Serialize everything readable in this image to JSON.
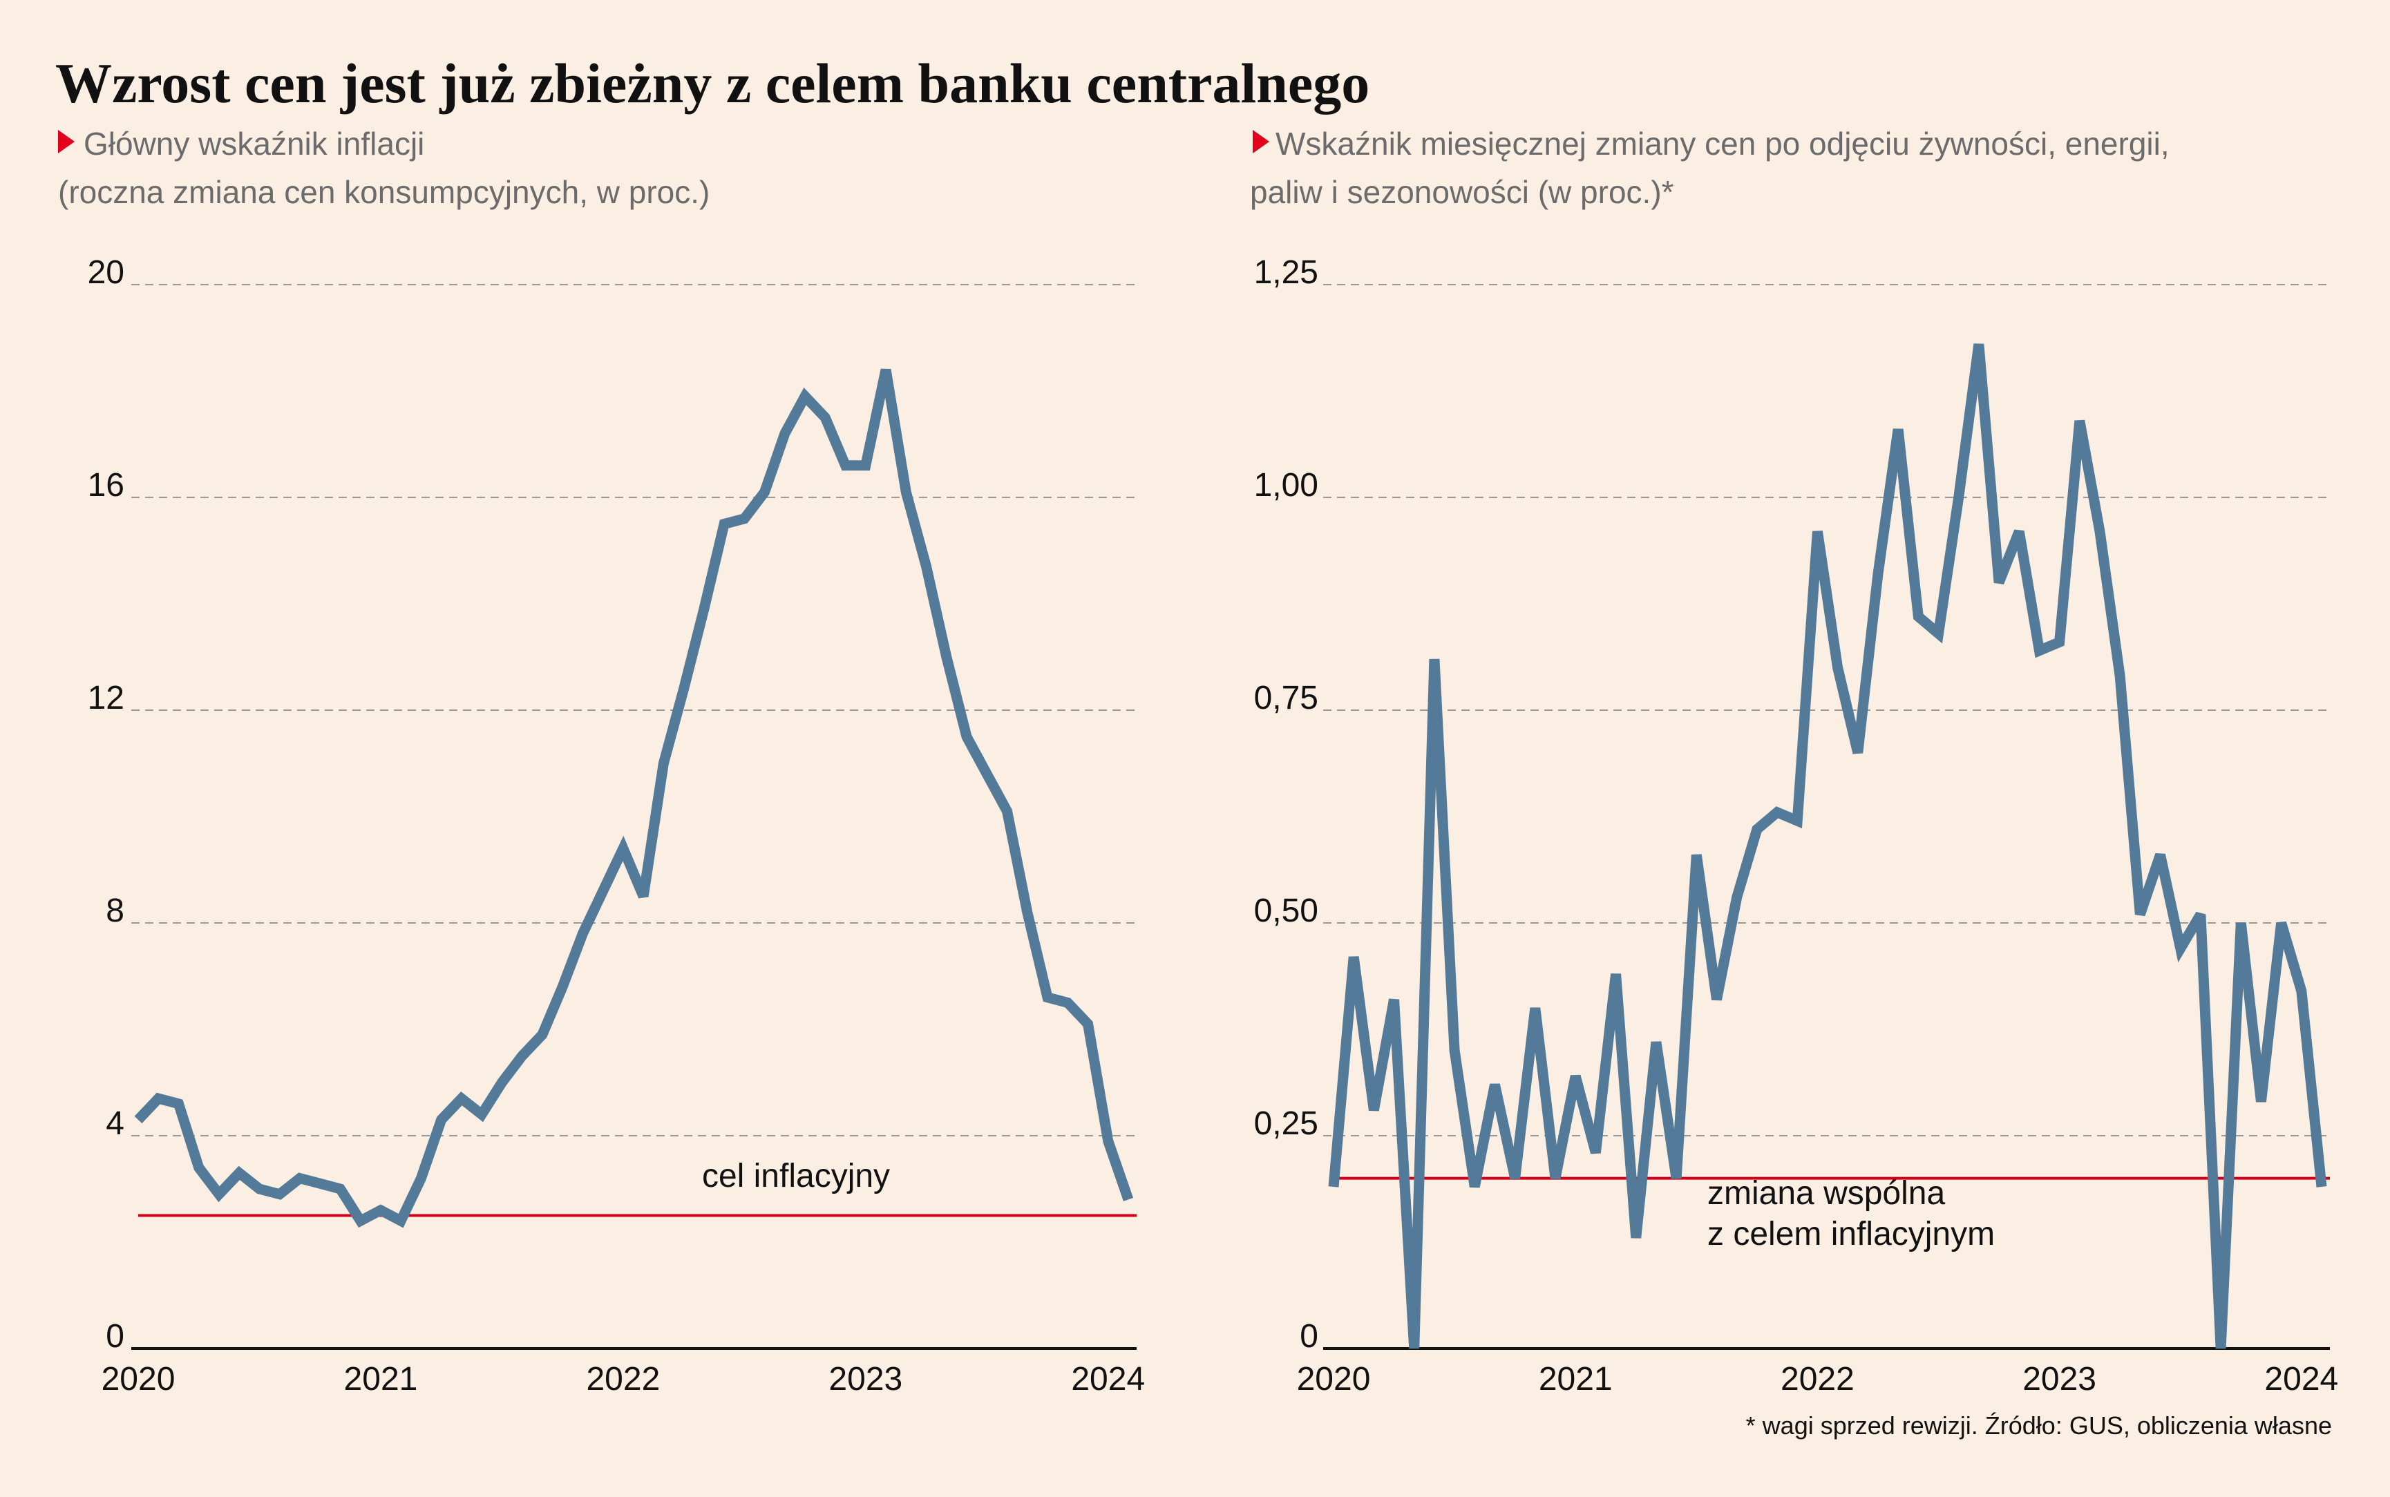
{
  "title": "Wzrost cen jest już zbieżny z celem banku centralnego",
  "footnote": "* wagi sprzed rewizji. Źródło: GUS, obliczenia własne",
  "chart_data": [
    {
      "type": "line",
      "subtitle": [
        "Główny wskaźnik inflacji",
        "(roczna zmiana cen konsumpcyjnych, w proc.)"
      ],
      "categories": [
        "2020",
        null,
        null,
        null,
        null,
        null,
        null,
        null,
        null,
        null,
        null,
        null,
        "2021",
        null,
        null,
        null,
        null,
        null,
        null,
        null,
        null,
        null,
        null,
        null,
        "2022",
        null,
        null,
        null,
        null,
        null,
        null,
        null,
        null,
        null,
        null,
        null,
        "2023",
        null,
        null,
        null,
        null,
        null,
        null,
        null,
        null,
        null,
        null,
        null,
        "2024",
        null
      ],
      "values": [
        4.3,
        4.7,
        4.6,
        3.4,
        2.9,
        3.3,
        3.0,
        2.9,
        3.2,
        3.1,
        3.0,
        2.4,
        2.6,
        2.4,
        3.2,
        4.3,
        4.7,
        4.4,
        5.0,
        5.5,
        5.9,
        6.8,
        7.8,
        8.6,
        9.4,
        8.5,
        11.0,
        12.4,
        13.9,
        15.5,
        15.6,
        16.1,
        17.2,
        17.9,
        17.5,
        16.6,
        16.6,
        18.4,
        16.1,
        14.7,
        13.0,
        11.5,
        10.8,
        10.1,
        8.2,
        6.6,
        6.5,
        6.1,
        3.9,
        2.8
      ],
      "color": "#537b99",
      "ylim": [
        0,
        20
      ],
      "yticks": [
        0,
        4,
        8,
        12,
        16,
        20
      ],
      "grid": true,
      "target": 2.5,
      "target_color": "#d0021b",
      "target_label": [
        "cel inflacyjny"
      ]
    },
    {
      "type": "line",
      "subtitle": [
        "Wskaźnik miesięcznej zmiany cen po odjęciu żywności, energii,",
        "paliw i sezonowości (w proc.)*"
      ],
      "categories": [
        "2020",
        null,
        null,
        null,
        null,
        null,
        null,
        null,
        null,
        null,
        null,
        null,
        "2021",
        null,
        null,
        null,
        null,
        null,
        null,
        null,
        null,
        null,
        null,
        null,
        "2022",
        null,
        null,
        null,
        null,
        null,
        null,
        null,
        null,
        null,
        null,
        null,
        "2023",
        null,
        null,
        null,
        null,
        null,
        null,
        null,
        null,
        null,
        null,
        null,
        "2024",
        null
      ],
      "values": [
        0.19,
        0.46,
        0.28,
        0.41,
        0,
        0.81,
        0.35,
        0.19,
        0.31,
        0.2,
        0.4,
        0.2,
        0.32,
        0.23,
        0.44,
        0.13,
        0.36,
        0.2,
        0.58,
        0.41,
        0.53,
        0.61,
        0.63,
        0.62,
        0.96,
        0.8,
        0.7,
        0.91,
        1.08,
        0.86,
        0.84,
        1.0,
        1.18,
        0.9,
        0.96,
        0.82,
        0.83,
        1.09,
        0.96,
        0.79,
        0.51,
        0.58,
        0.47,
        0.51,
        0,
        0.5,
        0.29,
        0.5,
        0.42,
        0.19
      ],
      "color": "#537b99",
      "ylim": [
        0,
        1.25
      ],
      "yticks": [
        0,
        {
          "value": 0.25,
          "label": "0,25"
        },
        {
          "value": 0.5,
          "label": "0,50"
        },
        {
          "value": 0.75,
          "label": "0,75"
        },
        {
          "value": 1,
          "label": "1,00"
        },
        {
          "value": 1.25,
          "label": "1,25"
        }
      ],
      "grid": true,
      "target": 0.2,
      "target_color": "#d0021b",
      "target_label": [
        "zmiana wspólna",
        "z celem inflacyjnym"
      ]
    }
  ]
}
